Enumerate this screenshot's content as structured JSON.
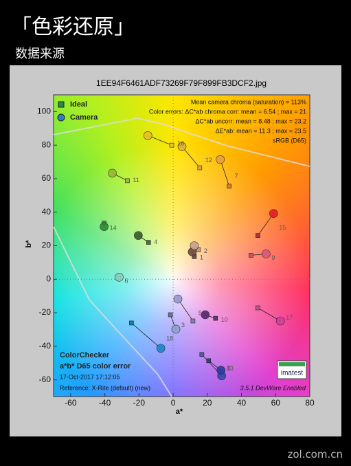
{
  "header": {
    "title": "「色彩还原」",
    "subtitle": "数据来源"
  },
  "footer": "zol.com.cn",
  "chart_data": {
    "type": "scatter",
    "title": "1EE94F6461ADF73269F79F899FB3DCF2.jpg",
    "xlabel": "a*",
    "ylabel": "b*",
    "xlim": [
      -70,
      80
    ],
    "ylim": [
      -70,
      110
    ],
    "xticks": [
      -60,
      -40,
      -20,
      0,
      20,
      40,
      60,
      80
    ],
    "yticks": [
      -60,
      -40,
      -20,
      0,
      20,
      40,
      60,
      80,
      100
    ],
    "legend": "top-left",
    "point_labels": [
      "1",
      "2",
      "3",
      "4",
      "5",
      "6",
      "7",
      "8",
      "9",
      "10",
      "11",
      "12",
      "13",
      "14",
      "15",
      "16",
      "17",
      "18"
    ],
    "series": [
      {
        "name": "Ideal",
        "marker": "square",
        "color": "#2a8a4a",
        "x": [
          12.4,
          14.8,
          -1.6,
          -14.4,
          11.6,
          -32,
          32.8,
          16.8,
          45.6,
          24.8,
          -26.8,
          15.6,
          20.8,
          -40.4,
          49.6,
          -0.8,
          49.6,
          -24.4
        ],
        "y": [
          13.5,
          17.6,
          -21.2,
          22,
          -24.9,
          0.5,
          55.5,
          -44.9,
          14.3,
          -23.3,
          58.8,
          66.5,
          -48.6,
          33.5,
          26.1,
          80,
          -17.1,
          -26.1
        ],
        "point_colors": [
          "#735244",
          "#c29682",
          "#627a9d",
          "#576c43",
          "#8580b1",
          "#67bdaa",
          "#d67e2c",
          "#505ba6",
          "#c15a63",
          "#5e3c6c",
          "#9dbc40",
          "#e0a32e",
          "#383d96",
          "#469449",
          "#af363c",
          "#e7c71f",
          "#bb5695",
          "#0885a1"
        ]
      },
      {
        "name": "Camera",
        "marker": "circle",
        "color": "#2f7fc0",
        "x": [
          11.2,
          12.4,
          1.6,
          -20.4,
          2.8,
          -31.6,
          27.6,
          28.4,
          54.4,
          18.8,
          -35.6,
          5.2,
          28,
          -40.4,
          58.8,
          -14.8,
          62.8,
          -7.2
        ],
        "y": [
          16.3,
          20,
          -29.8,
          26.1,
          -11.8,
          1.2,
          71.4,
          -57.6,
          15.1,
          -21.2,
          63.3,
          79.2,
          -54.3,
          31.4,
          39.2,
          85.7,
          -24.9,
          -41.2
        ],
        "point_colors": [
          "#6e4a3c",
          "#c8a08c",
          "#8aa4c8",
          "#3a5a2a",
          "#9a98d0",
          "#8ad0c0",
          "#e8a040",
          "#3848b0",
          "#d85a78",
          "#58246e",
          "#9ab830",
          "#e0b040",
          "#283ca0",
          "#2e8a30",
          "#e02020",
          "#e8c020",
          "#d040a0",
          "#1888c8"
        ]
      }
    ],
    "annotations": {
      "top_right": [
        "Mean camera chroma (saturation) = 113%",
        "Color errors:  ΔC*ab chroma corr:  mean = 6.54 ;  max = 21",
        "ΔC*ab uncorr:  mean = 8.48 ;  max = 23.2",
        "ΔE*ab:  mean = 11.3 ;  max = 23.5",
        "sRGB (D65)"
      ],
      "bottom_left": [
        "ColorChecker",
        "a*b* D65 color error",
        "17-Oct-2017 17:12:05",
        "Reference:  X-Rite (default) (new)"
      ],
      "bottom_right": [
        "3.5.1  DevWare Enabled",
        "imatest"
      ]
    }
  }
}
